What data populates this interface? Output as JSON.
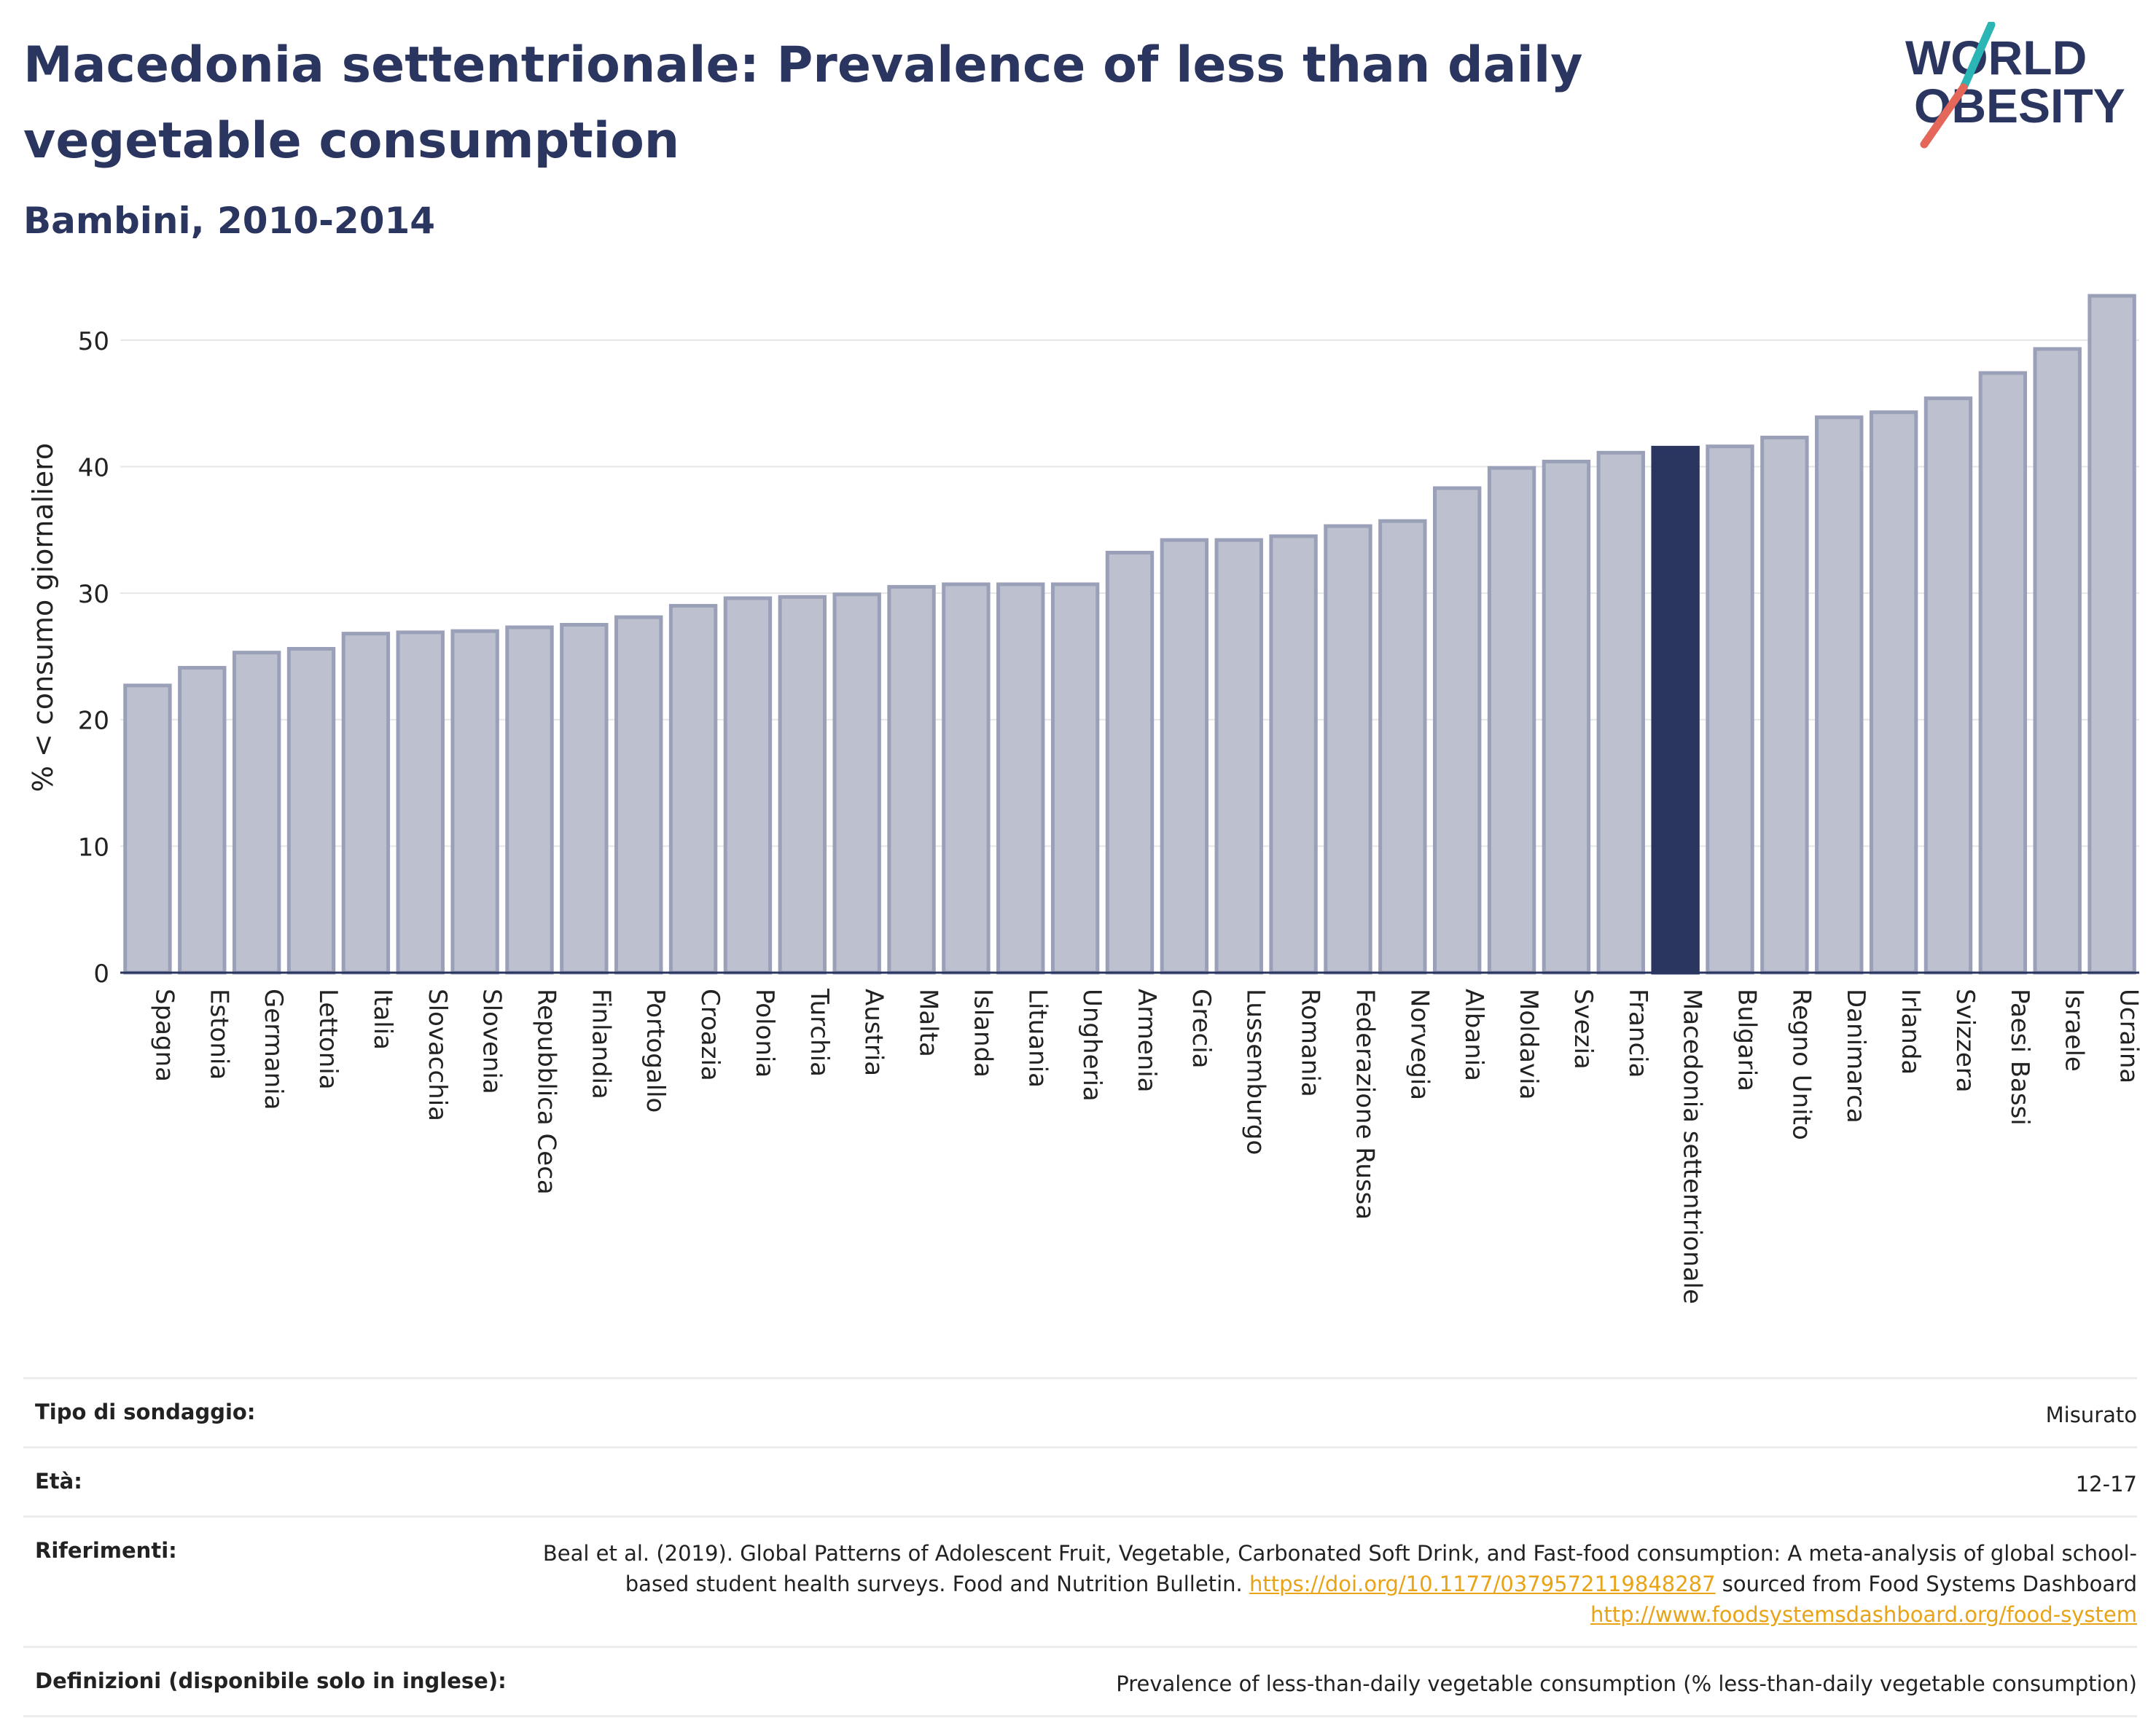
{
  "header": {
    "title": "Macedonia settentrionale: Prevalence of less than daily vegetable consumption",
    "subtitle": "Bambini, 2010-2014"
  },
  "logo": {
    "line1": "WORLD",
    "line2": "OBESITY"
  },
  "colors": {
    "highlight": "#2a3560",
    "bar": "#bdc1cf",
    "bar_border": "#9aa0b8",
    "accent_teal": "#2cb5b5",
    "accent_red": "#e5675a",
    "link": "#e8a317"
  },
  "chart_data": {
    "type": "bar",
    "ylabel": "% < consumo giornaliero",
    "ylim": [
      0,
      55
    ],
    "yticks": [
      0,
      10,
      20,
      30,
      40,
      50
    ],
    "grid": true,
    "highlight": "Macedonia settentrionale",
    "categories": [
      "Spagna",
      "Estonia",
      "Germania",
      "Lettonia",
      "Italia",
      "Slovacchia",
      "Slovenia",
      "Repubblica Ceca",
      "Finlandia",
      "Portogallo",
      "Croazia",
      "Polonia",
      "Turchia",
      "Austria",
      "Malta",
      "Islanda",
      "Lituania",
      "Ungheria",
      "Armenia",
      "Grecia",
      "Lussemburgo",
      "Romania",
      "Federazione Russa",
      "Norvegia",
      "Albania",
      "Moldavia",
      "Svezia",
      "Francia",
      "Macedonia settentrionale",
      "Bulgaria",
      "Regno Unito",
      "Danimarca",
      "Irlanda",
      "Svizzera",
      "Paesi Bassi",
      "Israele",
      "Ucraina"
    ],
    "values": [
      22.7,
      24.1,
      25.3,
      25.6,
      26.8,
      26.9,
      27.0,
      27.3,
      27.5,
      28.1,
      29.0,
      29.6,
      29.7,
      29.9,
      30.5,
      30.7,
      30.7,
      30.7,
      33.2,
      34.2,
      34.2,
      34.5,
      35.3,
      35.7,
      38.3,
      39.9,
      40.4,
      41.1,
      41.5,
      41.6,
      42.3,
      43.9,
      44.3,
      45.4,
      47.4,
      49.3,
      53.5
    ]
  },
  "info": {
    "survey_type_label": "Tipo di sondaggio:",
    "survey_type_value": "Misurato",
    "age_label": "Età:",
    "age_value": "12-17",
    "references_label": "Riferimenti:",
    "references_text_1": "Beal et al. (2019). Global Patterns of Adolescent Fruit, Vegetable, Carbonated Soft Drink, and Fast-food consumption: A meta-analysis of global school-based student health surveys. Food and Nutrition Bulletin.",
    "references_link_1": "https://doi.org/10.1177/0379572119848287",
    "references_text_2": "sourced from Food Systems Dashboard",
    "references_link_2": "http://www.foodsystemsdashboard.org/food-system",
    "definitions_label": "Definizioni (disponibile solo in inglese):",
    "definitions_value": "Prevalence of less-than-daily vegetable consumption (% less-than-daily vegetable consumption)"
  }
}
